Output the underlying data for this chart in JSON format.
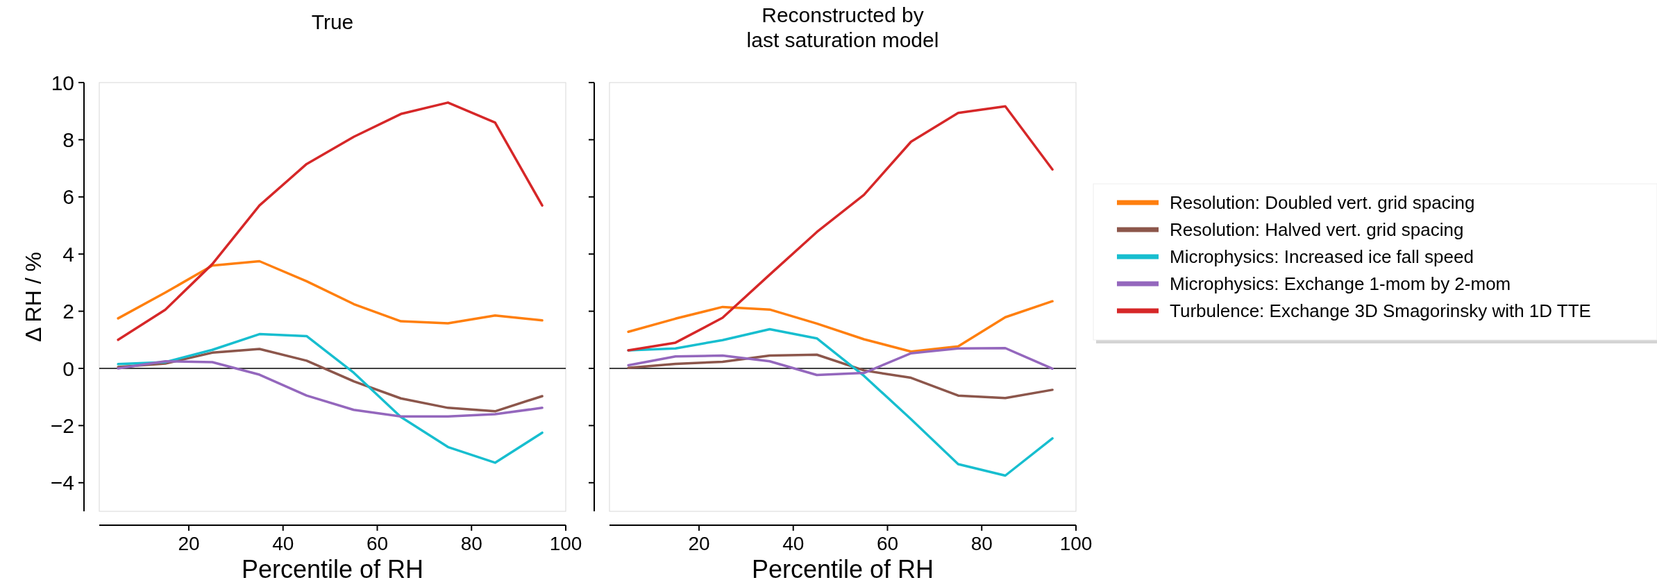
{
  "chart_data": [
    {
      "type": "line",
      "title": "True",
      "xlabel": "Percentile of RH",
      "ylabel": "Δ RH / %",
      "x": [
        5,
        15,
        25,
        35,
        45,
        55,
        65,
        75,
        85,
        95
      ],
      "xlim": [
        1,
        100
      ],
      "xticks": [
        20,
        40,
        60,
        80,
        100
      ],
      "ylim": [
        -5,
        10
      ],
      "yticks": [
        -4,
        -2,
        0,
        2,
        4,
        6,
        8,
        10
      ],
      "ref_lines": [
        {
          "axis": "y",
          "value": 0,
          "color": "#000000"
        }
      ],
      "legend": false,
      "series": [
        {
          "color": "#ff7f0e",
          "values": [
            1.75,
            2.65,
            3.6,
            3.75,
            3.05,
            2.25,
            1.65,
            1.58,
            1.85,
            1.68
          ]
        },
        {
          "color": "#8c564b",
          "values": [
            0.05,
            0.17,
            0.55,
            0.68,
            0.27,
            -0.45,
            -1.05,
            -1.38,
            -1.5,
            -0.97
          ]
        },
        {
          "color": "#17becf",
          "values": [
            0.15,
            0.22,
            0.65,
            1.2,
            1.13,
            -0.15,
            -1.7,
            -2.75,
            -3.3,
            -2.25
          ]
        },
        {
          "color": "#9467bd",
          "values": [
            0.0,
            0.25,
            0.22,
            -0.22,
            -0.95,
            -1.45,
            -1.68,
            -1.68,
            -1.6,
            -1.38
          ]
        },
        {
          "color": "#d62728",
          "values": [
            1.0,
            2.05,
            3.65,
            5.7,
            7.15,
            8.1,
            8.9,
            9.3,
            8.6,
            5.7
          ]
        }
      ]
    },
    {
      "type": "line",
      "title": "Reconstructed by\nlast saturation model",
      "xlabel": "Percentile of RH",
      "x": [
        5,
        15,
        25,
        35,
        45,
        55,
        65,
        75,
        85,
        95
      ],
      "xlim": [
        1,
        100
      ],
      "xticks": [
        20,
        40,
        60,
        80,
        100
      ],
      "ylim": [
        -5,
        10
      ],
      "yticks": [
        -4,
        -2,
        0,
        2,
        4,
        6,
        8,
        10
      ],
      "tick_labels": "x",
      "ref_lines": [
        {
          "axis": "y",
          "value": 0,
          "color": "#000000"
        }
      ],
      "legend": "right",
      "series": [
        {
          "name": "Resolution: Doubled vert. grid spacing",
          "color": "#ff7f0e",
          "values": [
            1.28,
            1.74,
            2.15,
            2.06,
            1.57,
            1.02,
            0.59,
            0.77,
            1.79,
            2.35
          ]
        },
        {
          "name": "Resolution: Halved vert. grid spacing",
          "color": "#8c564b",
          "values": [
            0.02,
            0.16,
            0.23,
            0.45,
            0.48,
            -0.07,
            -0.33,
            -0.95,
            -1.04,
            -0.75
          ]
        },
        {
          "name": "Microphysics: Increased ice fall speed",
          "color": "#17becf",
          "values": [
            0.63,
            0.7,
            0.99,
            1.37,
            1.05,
            -0.26,
            -1.78,
            -3.35,
            -3.75,
            -2.45
          ]
        },
        {
          "name": "Microphysics: Exchange 1-mom by 2-mom",
          "color": "#9467bd",
          "values": [
            0.11,
            0.42,
            0.45,
            0.25,
            -0.23,
            -0.16,
            0.53,
            0.7,
            0.71,
            -0.01
          ]
        },
        {
          "name": "Turbulence: Exchange 3D Smagorinsky with 1D TTE",
          "color": "#d62728",
          "values": [
            0.63,
            0.9,
            1.77,
            3.28,
            4.77,
            6.07,
            7.93,
            8.94,
            9.17,
            6.96
          ]
        }
      ]
    }
  ]
}
